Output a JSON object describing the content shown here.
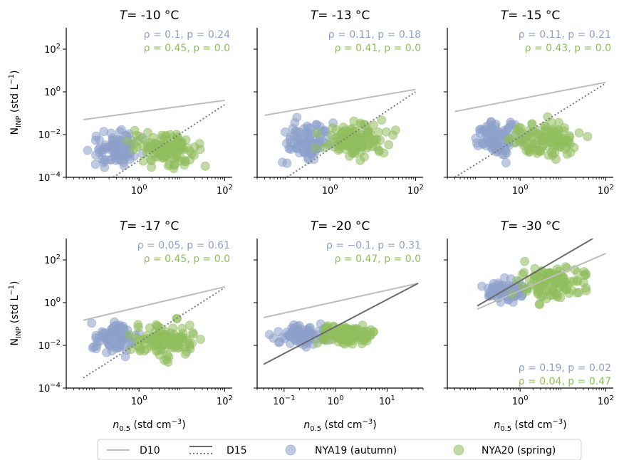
{
  "colors": {
    "autumn": "#8da0cb",
    "spring": "#8fbe5d",
    "d10": "#bdbdbd",
    "d15": "#6b6b6b",
    "dotted": "#7a7a7a",
    "axis": "#000000"
  },
  "labels": {
    "y_main": "N",
    "y_sub": "INP",
    "y_unit_pre": " (std L",
    "y_unit_sup": "−1",
    "y_unit_post": ")",
    "x_main": "n",
    "x_sub": "0.5",
    "x_unit_pre": " (std cm",
    "x_unit_sup": "−3",
    "x_unit_post": ")"
  },
  "legend": {
    "d10": "D10",
    "d15": "D15",
    "autumn": "NYA19 (autumn)",
    "spring": "NYA20 (spring)"
  },
  "chart_data": [
    {
      "type": "scatter",
      "title_T": "T",
      "title_value": "= -10 °C",
      "xscale": "log",
      "yscale": "log",
      "xlim": [
        0.02,
        150
      ],
      "ylim": [
        0.0001,
        1000
      ],
      "xticks": [
        "10^0",
        "10^2"
      ],
      "yticks": [
        "10^-4",
        "10^-2",
        "10^0",
        "10^2"
      ],
      "stats": [
        {
          "series": "autumn",
          "text": "ρ = 0.1, p = 0.24"
        },
        {
          "series": "spring",
          "text": "ρ = 0.45, p = 0.0"
        }
      ],
      "stats_position": "top-right",
      "lines": {
        "d10": [
          [
            0.05,
            0.05
          ],
          [
            100,
            0.4
          ]
        ],
        "d15_dotted": [
          [
            0.25,
            0.0001
          ],
          [
            100,
            0.25
          ]
        ]
      },
      "series": [
        {
          "name": "NYA19 (autumn)",
          "color_key": "autumn",
          "n": 90,
          "x_range": [
            0.05,
            1.5
          ],
          "y_range": [
            0.0001,
            0.05
          ]
        },
        {
          "name": "NYA20 (spring)",
          "color_key": "spring",
          "n": 110,
          "x_range": [
            0.3,
            50
          ],
          "y_range": [
            0.0001,
            0.05
          ]
        }
      ]
    },
    {
      "type": "scatter",
      "title_T": "T",
      "title_value": "= -13 °C",
      "xscale": "log",
      "yscale": "log",
      "xlim": [
        0.02,
        150
      ],
      "ylim": [
        0.0001,
        1000
      ],
      "xticks": [
        "10^0",
        "10^2"
      ],
      "yticks": [],
      "stats": [
        {
          "series": "autumn",
          "text": "ρ = 0.11, p = 0.18"
        },
        {
          "series": "spring",
          "text": "ρ = 0.41, p = 0.0"
        }
      ],
      "stats_position": "top-right",
      "lines": {
        "d10": [
          [
            0.03,
            0.08
          ],
          [
            100,
            1.3
          ]
        ],
        "d15_dotted": [
          [
            0.1,
            0.0001
          ],
          [
            100,
            1.0
          ]
        ]
      },
      "series": [
        {
          "name": "NYA19 (autumn)",
          "color_key": "autumn",
          "n": 90,
          "x_range": [
            0.05,
            1.5
          ],
          "y_range": [
            0.0002,
            0.15
          ]
        },
        {
          "name": "NYA20 (spring)",
          "color_key": "spring",
          "n": 110,
          "x_range": [
            0.3,
            50
          ],
          "y_range": [
            0.0002,
            0.15
          ]
        }
      ]
    },
    {
      "type": "scatter",
      "title_T": "T",
      "title_value": "= -15 °C",
      "xscale": "log",
      "yscale": "log",
      "xlim": [
        0.02,
        150
      ],
      "ylim": [
        0.0001,
        1000
      ],
      "xticks": [
        "10^0",
        "10^2"
      ],
      "yticks": [],
      "stats": [
        {
          "series": "autumn",
          "text": "ρ = 0.11, p = 0.21"
        },
        {
          "series": "spring",
          "text": "ρ = 0.43, p = 0.0"
        }
      ],
      "stats_position": "top-right",
      "lines": {
        "d10": [
          [
            0.03,
            0.12
          ],
          [
            100,
            2.8
          ]
        ],
        "d15_dotted": [
          [
            0.03,
            0.0001
          ],
          [
            100,
            2.5
          ]
        ]
      },
      "series": [
        {
          "name": "NYA19 (autumn)",
          "color_key": "autumn",
          "n": 90,
          "x_range": [
            0.05,
            1.5
          ],
          "y_range": [
            0.0002,
            0.2
          ]
        },
        {
          "name": "NYA20 (spring)",
          "color_key": "spring",
          "n": 110,
          "x_range": [
            0.3,
            50
          ],
          "y_range": [
            0.0002,
            0.2
          ]
        }
      ]
    },
    {
      "type": "scatter",
      "title_T": "T",
      "title_value": "= -17 °C",
      "xscale": "log",
      "yscale": "log",
      "xlim": [
        0.02,
        150
      ],
      "ylim": [
        0.0001,
        1000
      ],
      "xticks": [
        "10^0",
        "10^2"
      ],
      "yticks": [
        "10^-4",
        "10^-2",
        "10^0",
        "10^2"
      ],
      "stats": [
        {
          "series": "autumn",
          "text": "ρ = 0.05, p = 0.61"
        },
        {
          "series": "spring",
          "text": "ρ = 0.45, p = 0.0"
        }
      ],
      "stats_position": "top-right",
      "lines": {
        "d10": [
          [
            0.05,
            0.15
          ],
          [
            100,
            5.5
          ]
        ],
        "d15_dotted": [
          [
            0.05,
            0.0003
          ],
          [
            100,
            5.0
          ]
        ]
      },
      "series": [
        {
          "name": "NYA19 (autumn)",
          "color_key": "autumn",
          "n": 90,
          "x_range": [
            0.05,
            1.5
          ],
          "y_range": [
            0.0015,
            0.3
          ]
        },
        {
          "name": "NYA20 (spring)",
          "color_key": "spring",
          "n": 110,
          "x_range": [
            0.3,
            50
          ],
          "y_range": [
            0.001,
            0.3
          ]
        }
      ]
    },
    {
      "type": "scatter",
      "title_T": "T",
      "title_value": "= -20 °C",
      "xscale": "log",
      "yscale": "log",
      "xlim": [
        0.03,
        50
      ],
      "ylim": [
        0.0001,
        1000
      ],
      "xticks": [
        "10^-1",
        "10^0",
        "10^1"
      ],
      "yticks": [],
      "stats": [
        {
          "series": "autumn",
          "text": "ρ = −0.1, p = 0.31"
        },
        {
          "series": "spring",
          "text": "ρ = 0.47, p = 0.0"
        }
      ],
      "stats_position": "top-right",
      "lines": {
        "d10": [
          [
            0.04,
            0.2
          ],
          [
            40,
            8
          ]
        ],
        "d15": [
          [
            0.04,
            0.0013
          ],
          [
            40,
            8
          ]
        ]
      },
      "series": [
        {
          "name": "NYA19 (autumn)",
          "color_key": "autumn",
          "n": 90,
          "x_range": [
            0.04,
            1.5
          ],
          "y_range": [
            0.005,
            0.2
          ]
        },
        {
          "name": "NYA20 (spring)",
          "color_key": "spring",
          "n": 110,
          "x_range": [
            0.3,
            10
          ],
          "y_range": [
            0.005,
            0.2
          ]
        }
      ]
    },
    {
      "type": "scatter",
      "title_T": "T",
      "title_value": "= -30 °C",
      "xscale": "log",
      "yscale": "log",
      "xlim": [
        0.02,
        150
      ],
      "ylim": [
        0.0001,
        1000
      ],
      "xticks": [
        "10^0",
        "10^2"
      ],
      "yticks": [],
      "stats": [
        {
          "series": "autumn",
          "text": "ρ = 0.19, p = 0.02"
        },
        {
          "series": "spring",
          "text": "ρ = 0.04, p = 0.47"
        }
      ],
      "stats_position": "bottom-right",
      "lines": {
        "d10": [
          [
            0.1,
            0.5
          ],
          [
            100,
            200
          ]
        ],
        "d15": [
          [
            0.1,
            0.7
          ],
          [
            50,
            1000
          ]
        ]
      },
      "series": [
        {
          "name": "NYA19 (autumn)",
          "color_key": "autumn",
          "n": 90,
          "x_range": [
            0.1,
            2
          ],
          "y_range": [
            0.5,
            20
          ]
        },
        {
          "name": "NYA20 (spring)",
          "color_key": "spring",
          "n": 110,
          "x_range": [
            0.3,
            100
          ],
          "y_range": [
            0.3,
            250
          ]
        }
      ]
    }
  ]
}
